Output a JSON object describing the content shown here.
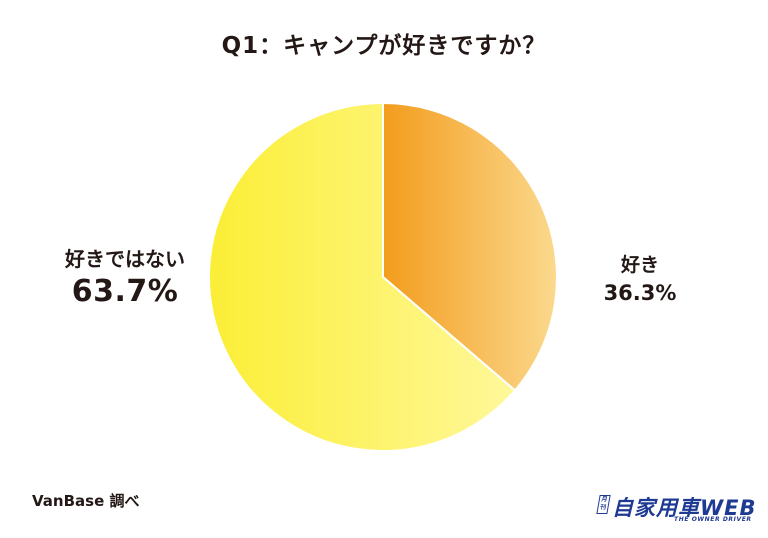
{
  "chart_data": {
    "type": "pie",
    "title": "Q1：キャンプが好きですか？",
    "slices": [
      {
        "label": "好き",
        "value": 36.3,
        "display": "36.3%",
        "color": "#f5a623"
      },
      {
        "label": "好きではない",
        "value": 63.7,
        "display": "63.7%",
        "color": "#fff176"
      }
    ],
    "start": "12 o'clock, clockwise"
  },
  "source": "VanBase 調べ",
  "logo": {
    "badge": "月刊",
    "name": "自家用車WEB",
    "tagline": "THE OWNER DRIVER"
  },
  "colors": {
    "orange_dark": "#f39c1c",
    "orange_light": "#fbd98e",
    "yellow_dark": "#fbee36",
    "yellow_light": "#fff89a",
    "text": "#231815",
    "logo_blue": "#1f3a93"
  }
}
